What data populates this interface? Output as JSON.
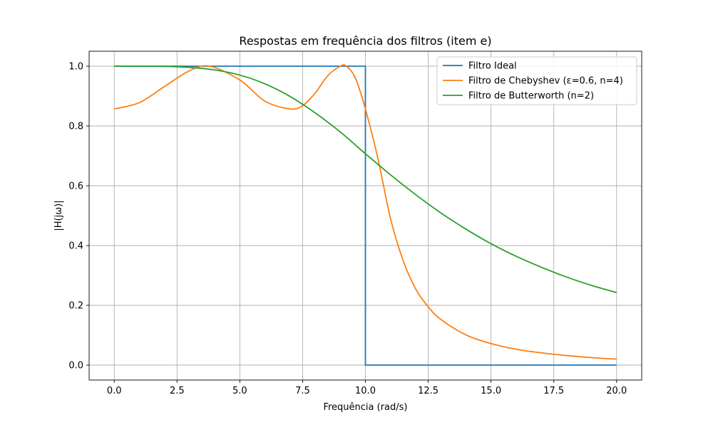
{
  "chart_data": {
    "type": "line",
    "title": "Respostas em frequência dos filtros (item e)",
    "xlabel": "Frequência (rad/s)",
    "ylabel": "|H(jω)|",
    "xlim": [
      -1.0,
      21.0
    ],
    "ylim": [
      -0.05,
      1.05
    ],
    "xticks": [
      0.0,
      2.5,
      5.0,
      7.5,
      10.0,
      12.5,
      15.0,
      17.5,
      20.0
    ],
    "xtick_labels": [
      "0.0",
      "2.5",
      "5.0",
      "7.5",
      "10.0",
      "12.5",
      "15.0",
      "17.5",
      "20.0"
    ],
    "yticks": [
      0.0,
      0.2,
      0.4,
      0.6,
      0.8,
      1.0
    ],
    "ytick_labels": [
      "0.0",
      "0.2",
      "0.4",
      "0.6",
      "0.8",
      "1.0"
    ],
    "grid": true,
    "legend_position": "top-right",
    "series": [
      {
        "name": "Filtro Ideal",
        "color": "#1f77b4",
        "x": [
          0,
          10,
          10,
          20
        ],
        "y": [
          1,
          1,
          0,
          0
        ]
      },
      {
        "name": "Filtro de Chebyshev (ε=0.6, n=4)",
        "color": "#ff7f0e",
        "x": [
          0,
          1,
          2,
          3,
          3.8,
          5,
          6,
          7,
          7.5,
          8,
          8.5,
          9,
          9.24,
          9.6,
          10,
          10.5,
          11,
          11.5,
          12,
          12.5,
          13,
          14,
          15,
          16,
          17,
          18,
          19,
          20
        ],
        "y": [
          0.857,
          0.878,
          0.932,
          0.985,
          1.0,
          0.954,
          0.883,
          0.857,
          0.868,
          0.91,
          0.968,
          1.0,
          1.0,
          0.96,
          0.857,
          0.69,
          0.49,
          0.35,
          0.255,
          0.195,
          0.153,
          0.101,
          0.072,
          0.053,
          0.041,
          0.032,
          0.025,
          0.02
        ]
      },
      {
        "name": "Filtro de Butterworth (n=2)",
        "color": "#2ca02c",
        "x": [
          0,
          1,
          2,
          3,
          4,
          5,
          6,
          7,
          8,
          9,
          10,
          11,
          12,
          13,
          14,
          15,
          16,
          17,
          18,
          19,
          20
        ],
        "y": [
          1.0,
          1.0,
          0.9992,
          0.996,
          0.9874,
          0.9701,
          0.941,
          0.8986,
          0.8437,
          0.7798,
          0.7071,
          0.6365,
          0.5704,
          0.5093,
          0.4549,
          0.4061,
          0.3641,
          0.3276,
          0.2948,
          0.2667,
          0.2425
        ]
      }
    ]
  }
}
